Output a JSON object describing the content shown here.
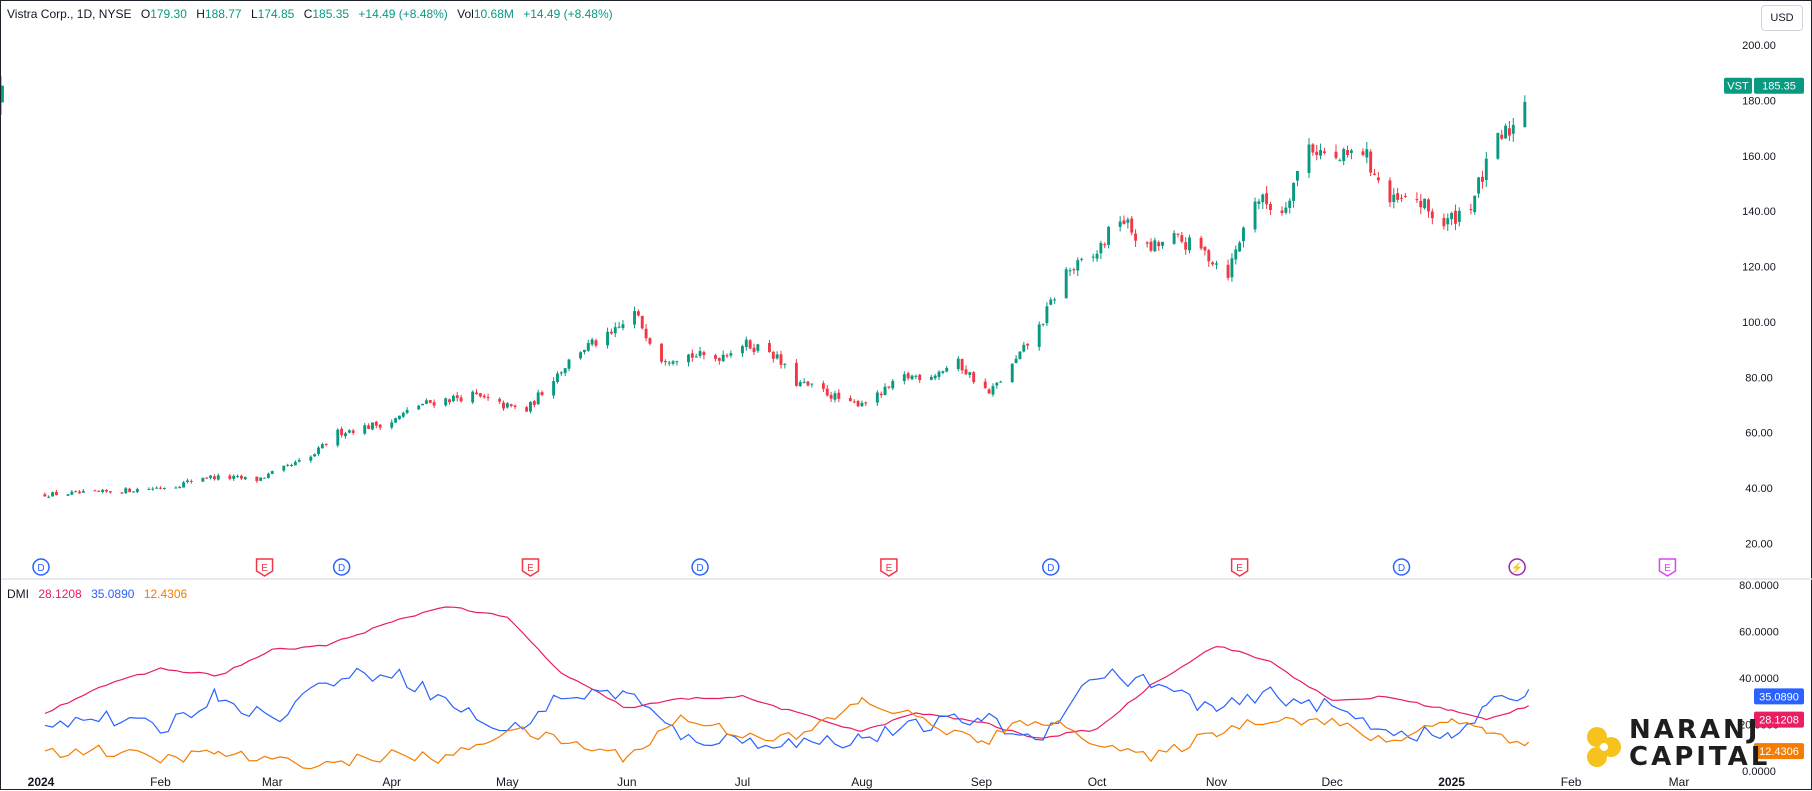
{
  "header": {
    "symbol": "Vistra Corp., 1D, NYSE",
    "o_label": "O",
    "o_value": "179.30",
    "h_label": "H",
    "h_value": "188.77",
    "l_label": "L",
    "l_value": "174.85",
    "c_label": "C",
    "c_value": "185.35",
    "change": "+14.49 (+8.48%)",
    "vol_label": "Vol",
    "vol_value": "10.68M",
    "vol_change": "+14.49 (+8.48%)"
  },
  "currency": "USD",
  "price_badge": {
    "ticker": "VST",
    "value": "185.35"
  },
  "dmi": {
    "label": "DMI",
    "adx_value": "28.1208",
    "plus_di_value": "35.0890",
    "minus_di_value": "12.4306"
  },
  "logo": {
    "line1": "NARANJ",
    "line2": "CAPITAL"
  },
  "colors": {
    "up": "#089981",
    "down": "#f23645",
    "adx": "#e91e63",
    "plus_di": "#2962ff",
    "minus_di": "#f57c00",
    "earnings": "#f23645",
    "dividend": "#2962ff",
    "split": "#9c27b0",
    "future_earnings": "#e040fb"
  },
  "chart_data": [
    {
      "type": "candlestick",
      "title": "Vistra Corp., 1D, NYSE",
      "x_labels": [
        "2024",
        "Feb",
        "Mar",
        "Apr",
        "May",
        "Jun",
        "Jul",
        "Aug",
        "Sep",
        "Oct",
        "Nov",
        "Dec",
        "2025",
        "Feb",
        "Mar"
      ],
      "y_ticks": [
        "200.00",
        "180.00",
        "160.00",
        "140.00",
        "120.00",
        "100.00",
        "80.00",
        "60.00",
        "40.00",
        "20.00"
      ],
      "ylim": [
        10,
        208
      ],
      "close_series": [
        [
          "2024-01-02",
          37.6
        ],
        [
          "2024-01-08",
          38.0
        ],
        [
          "2024-01-15",
          38.2
        ],
        [
          "2024-01-22",
          39.0
        ],
        [
          "2024-01-29",
          39.8
        ],
        [
          "2024-02-05",
          40.8
        ],
        [
          "2024-02-12",
          44.0
        ],
        [
          "2024-02-20",
          43.6
        ],
        [
          "2024-02-26",
          43.0
        ],
        [
          "2024-03-04",
          47.0
        ],
        [
          "2024-03-11",
          51.0
        ],
        [
          "2024-03-18",
          60.0
        ],
        [
          "2024-03-25",
          62.0
        ],
        [
          "2024-04-01",
          64.0
        ],
        [
          "2024-04-08",
          70.0
        ],
        [
          "2024-04-15",
          72.0
        ],
        [
          "2024-04-22",
          73.5
        ],
        [
          "2024-04-29",
          70.0
        ],
        [
          "2024-05-06",
          68.0
        ],
        [
          "2024-05-13",
          80.0
        ],
        [
          "2024-05-20",
          90.0
        ],
        [
          "2024-05-28",
          95.0
        ],
        [
          "2024-06-03",
          103.0
        ],
        [
          "2024-06-10",
          87.0
        ],
        [
          "2024-06-17",
          88.0
        ],
        [
          "2024-06-24",
          87.0
        ],
        [
          "2024-07-01",
          92.0
        ],
        [
          "2024-07-08",
          90.0
        ],
        [
          "2024-07-15",
          78.0
        ],
        [
          "2024-07-22",
          75.0
        ],
        [
          "2024-07-29",
          70.0
        ],
        [
          "2024-08-05",
          73.0
        ],
        [
          "2024-08-12",
          80.0
        ],
        [
          "2024-08-19",
          81.0
        ],
        [
          "2024-08-26",
          85.0
        ],
        [
          "2024-09-03",
          74.0
        ],
        [
          "2024-09-09",
          84.0
        ],
        [
          "2024-09-16",
          98.0
        ],
        [
          "2024-09-23",
          118.0
        ],
        [
          "2024-09-30",
          123.0
        ],
        [
          "2024-10-07",
          138.0
        ],
        [
          "2024-10-14",
          126.0
        ],
        [
          "2024-10-21",
          130.0
        ],
        [
          "2024-10-28",
          126.0
        ],
        [
          "2024-11-04",
          118.0
        ],
        [
          "2024-11-11",
          145.0
        ],
        [
          "2024-11-18",
          140.0
        ],
        [
          "2024-11-25",
          164.0
        ],
        [
          "2024-12-02",
          158.0
        ],
        [
          "2024-12-09",
          162.0
        ],
        [
          "2024-12-16",
          143.0
        ],
        [
          "2024-12-23",
          144.0
        ],
        [
          "2024-12-30",
          135.0
        ],
        [
          "2025-01-06",
          143.0
        ],
        [
          "2025-01-13",
          165.0
        ],
        [
          "2025-01-17",
          170.9
        ],
        [
          "2025-01-21",
          185.35
        ]
      ],
      "last_candle": {
        "open": 179.3,
        "high": 188.77,
        "low": 174.85,
        "close": 185.35
      }
    },
    {
      "type": "line",
      "title": "DMI",
      "y_ticks": [
        "80.0000",
        "60.0000",
        "40.0000",
        "20.0000",
        "0.0000"
      ],
      "ylim": [
        0,
        80
      ],
      "series": [
        {
          "name": "ADX",
          "values": [
            [
              "2024-01-02",
              25
            ],
            [
              "2024-01-16",
              36
            ],
            [
              "2024-02-01",
              44
            ],
            [
              "2024-02-16",
              41
            ],
            [
              "2024-03-01",
              52
            ],
            [
              "2024-03-15",
              54
            ],
            [
              "2024-04-01",
              64
            ],
            [
              "2024-04-15",
              71
            ],
            [
              "2024-05-01",
              66
            ],
            [
              "2024-05-15",
              42
            ],
            [
              "2024-06-01",
              27
            ],
            [
              "2024-06-15",
              31
            ],
            [
              "2024-07-01",
              32
            ],
            [
              "2024-07-15",
              25
            ],
            [
              "2024-08-01",
              17
            ],
            [
              "2024-08-15",
              25
            ],
            [
              "2024-09-01",
              21
            ],
            [
              "2024-09-15",
              14
            ],
            [
              "2024-10-01",
              18
            ],
            [
              "2024-10-15",
              37
            ],
            [
              "2024-11-01",
              54
            ],
            [
              "2024-11-15",
              47
            ],
            [
              "2024-12-01",
              30
            ],
            [
              "2024-12-15",
              32
            ],
            [
              "2025-01-01",
              26
            ],
            [
              "2025-01-10",
              22
            ],
            [
              "2025-01-21",
              28.1208
            ]
          ]
        },
        {
          "name": "+DI",
          "values": [
            [
              "2024-01-02",
              21
            ],
            [
              "2024-01-16",
              23
            ],
            [
              "2024-02-01",
              18
            ],
            [
              "2024-02-16",
              33
            ],
            [
              "2024-03-01",
              22
            ],
            [
              "2024-03-15",
              39
            ],
            [
              "2024-04-01",
              43
            ],
            [
              "2024-04-15",
              30
            ],
            [
              "2024-05-01",
              16
            ],
            [
              "2024-05-15",
              32
            ],
            [
              "2024-06-01",
              34
            ],
            [
              "2024-06-15",
              14
            ],
            [
              "2024-07-01",
              13
            ],
            [
              "2024-07-15",
              12
            ],
            [
              "2024-08-01",
              14
            ],
            [
              "2024-08-15",
              19
            ],
            [
              "2024-09-01",
              23
            ],
            [
              "2024-09-15",
              13
            ],
            [
              "2024-10-01",
              42
            ],
            [
              "2024-10-15",
              38
            ],
            [
              "2024-11-01",
              26
            ],
            [
              "2024-11-15",
              33
            ],
            [
              "2024-12-01",
              27
            ],
            [
              "2024-12-15",
              18
            ],
            [
              "2025-01-01",
              14
            ],
            [
              "2025-01-10",
              27
            ],
            [
              "2025-01-21",
              35.089
            ]
          ]
        },
        {
          "name": "-DI",
          "values": [
            [
              "2024-01-02",
              8
            ],
            [
              "2024-01-16",
              9
            ],
            [
              "2024-02-01",
              5
            ],
            [
              "2024-02-16",
              8
            ],
            [
              "2024-03-01",
              4
            ],
            [
              "2024-03-15",
              3
            ],
            [
              "2024-04-01",
              7
            ],
            [
              "2024-04-15",
              5
            ],
            [
              "2024-05-01",
              18
            ],
            [
              "2024-05-15",
              13
            ],
            [
              "2024-06-01",
              6
            ],
            [
              "2024-06-15",
              23
            ],
            [
              "2024-07-01",
              16
            ],
            [
              "2024-07-15",
              14
            ],
            [
              "2024-08-01",
              30
            ],
            [
              "2024-08-15",
              23
            ],
            [
              "2024-09-01",
              12
            ],
            [
              "2024-09-15",
              23
            ],
            [
              "2024-10-01",
              13
            ],
            [
              "2024-10-15",
              5
            ],
            [
              "2024-11-01",
              17
            ],
            [
              "2024-11-15",
              23
            ],
            [
              "2024-12-01",
              21
            ],
            [
              "2024-12-15",
              12
            ],
            [
              "2025-01-01",
              23
            ],
            [
              "2025-01-10",
              17
            ],
            [
              "2025-01-21",
              12.4306
            ]
          ]
        }
      ]
    }
  ],
  "event_markers": [
    {
      "date": "2024-01-01",
      "kind": "dividend",
      "glyph": "D"
    },
    {
      "date": "2024-02-28",
      "kind": "earnings",
      "glyph": "E"
    },
    {
      "date": "2024-03-19",
      "kind": "dividend",
      "glyph": "D"
    },
    {
      "date": "2024-05-07",
      "kind": "earnings",
      "glyph": "E"
    },
    {
      "date": "2024-06-20",
      "kind": "dividend",
      "glyph": "D"
    },
    {
      "date": "2024-08-08",
      "kind": "earnings",
      "glyph": "E"
    },
    {
      "date": "2024-09-19",
      "kind": "dividend",
      "glyph": "D"
    },
    {
      "date": "2024-11-07",
      "kind": "earnings",
      "glyph": "E"
    },
    {
      "date": "2024-12-19",
      "kind": "dividend",
      "glyph": "D"
    },
    {
      "date": "2025-01-18",
      "kind": "split",
      "glyph": "⚡"
    },
    {
      "date": "2025-02-26",
      "kind": "future_earnings",
      "glyph": "E"
    }
  ]
}
